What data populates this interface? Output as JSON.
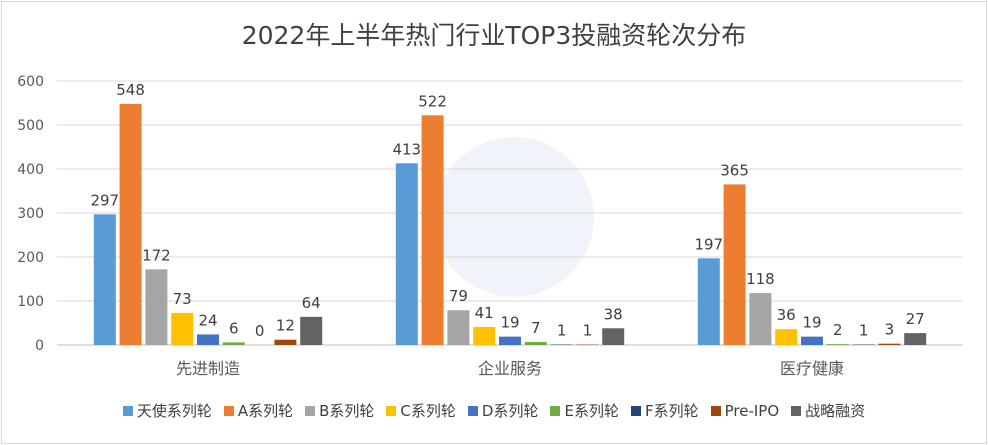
{
  "chart_data": {
    "type": "bar",
    "title": "2022年上半年热门行业TOP3投融资轮次分布",
    "categories": [
      "先进制造",
      "企业服务",
      "医疗健康"
    ],
    "ylim": [
      0,
      600
    ],
    "yticks": [
      0,
      100,
      200,
      300,
      400,
      500,
      600
    ],
    "grid": true,
    "legend_position": "bottom",
    "series": [
      {
        "name": "天使系列轮",
        "color": "#5b9bd5",
        "values": [
          297,
          413,
          197
        ]
      },
      {
        "name": "A系列轮",
        "color": "#ed7d31",
        "values": [
          548,
          522,
          365
        ]
      },
      {
        "name": "B系列轮",
        "color": "#a5a5a5",
        "values": [
          172,
          79,
          118
        ]
      },
      {
        "name": "C系列轮",
        "color": "#ffc000",
        "values": [
          73,
          41,
          36
        ]
      },
      {
        "name": "D系列轮",
        "color": "#4472c4",
        "values": [
          24,
          19,
          19
        ]
      },
      {
        "name": "E系列轮",
        "color": "#70ad47",
        "values": [
          6,
          7,
          2
        ]
      },
      {
        "name": "F系列轮",
        "color": "#264478",
        "values": [
          0,
          1,
          1
        ]
      },
      {
        "name": "Pre-IPO",
        "color": "#9e480e",
        "values": [
          12,
          1,
          3
        ]
      },
      {
        "name": "战略融资",
        "color": "#636363",
        "values": [
          64,
          38,
          27
        ]
      }
    ]
  }
}
